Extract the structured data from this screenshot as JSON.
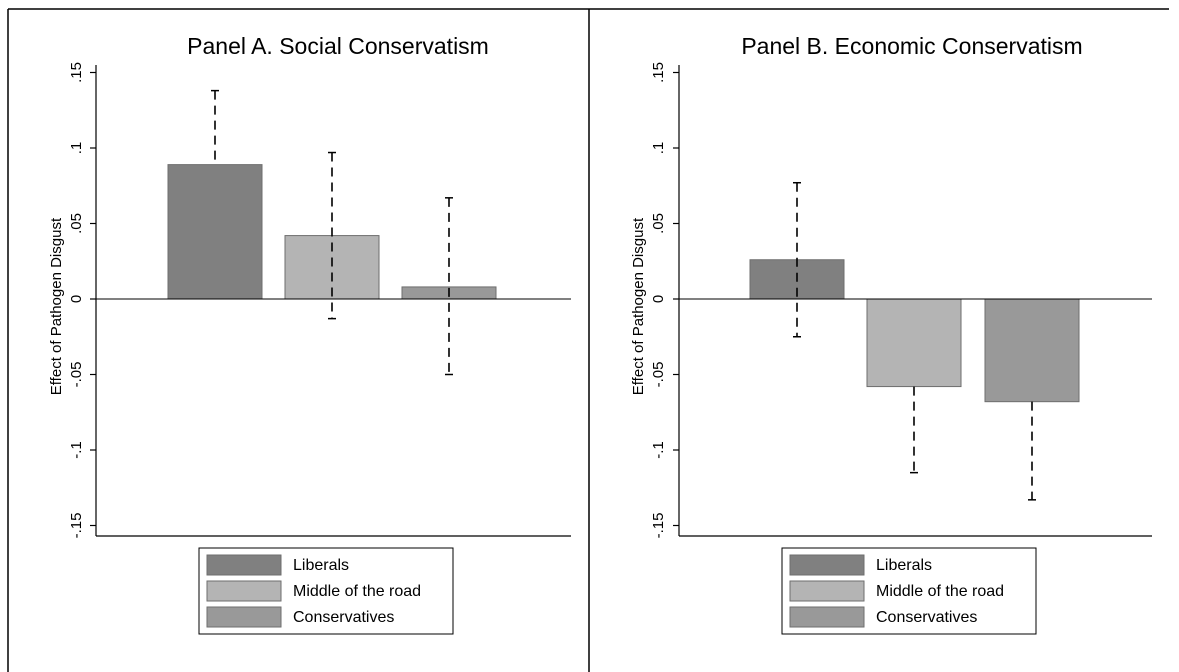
{
  "chart_data": [
    {
      "type": "bar",
      "title": "Panel A. Social Conservatism",
      "ylabel": "Effect of Pathogen Disgust",
      "xlabel": "",
      "ylim": [
        -0.16,
        0.15
      ],
      "yticks": [
        0.15,
        0.1,
        0.05,
        0,
        -0.05,
        -0.1,
        -0.15
      ],
      "ytick_labels": [
        ".15",
        ".1",
        ".05",
        "0",
        "-.05",
        "-.1",
        "-.15"
      ],
      "legend_position": "bottom",
      "series": [
        {
          "name": "Liberals",
          "value": 0.089,
          "ci": [
            0.089,
            0.138
          ],
          "color": "#808080"
        },
        {
          "name": "Middle of the road",
          "value": 0.042,
          "ci": [
            -0.013,
            0.097
          ],
          "color": "#b4b4b4"
        },
        {
          "name": "Conservatives",
          "value": 0.008,
          "ci": [
            -0.05,
            0.067
          ],
          "color": "#999999"
        }
      ]
    },
    {
      "type": "bar",
      "title": "Panel B. Economic Conservatism",
      "ylabel": "Effect of Pathogen Disgust",
      "xlabel": "",
      "ylim": [
        -0.16,
        0.15
      ],
      "yticks": [
        0.15,
        0.1,
        0.05,
        0,
        -0.05,
        -0.1,
        -0.15
      ],
      "ytick_labels": [
        ".15",
        ".1",
        ".05",
        "0",
        "-.05",
        "-.1",
        "-.15"
      ],
      "legend_position": "bottom",
      "series": [
        {
          "name": "Liberals",
          "value": 0.026,
          "ci": [
            -0.025,
            0.077
          ],
          "color": "#808080"
        },
        {
          "name": "Middle of the road",
          "value": -0.058,
          "ci": [
            -0.115,
            -0.058
          ],
          "color": "#b4b4b4"
        },
        {
          "name": "Conservatives",
          "value": -0.068,
          "ci": [
            -0.133,
            -0.068
          ],
          "color": "#999999"
        }
      ]
    }
  ]
}
